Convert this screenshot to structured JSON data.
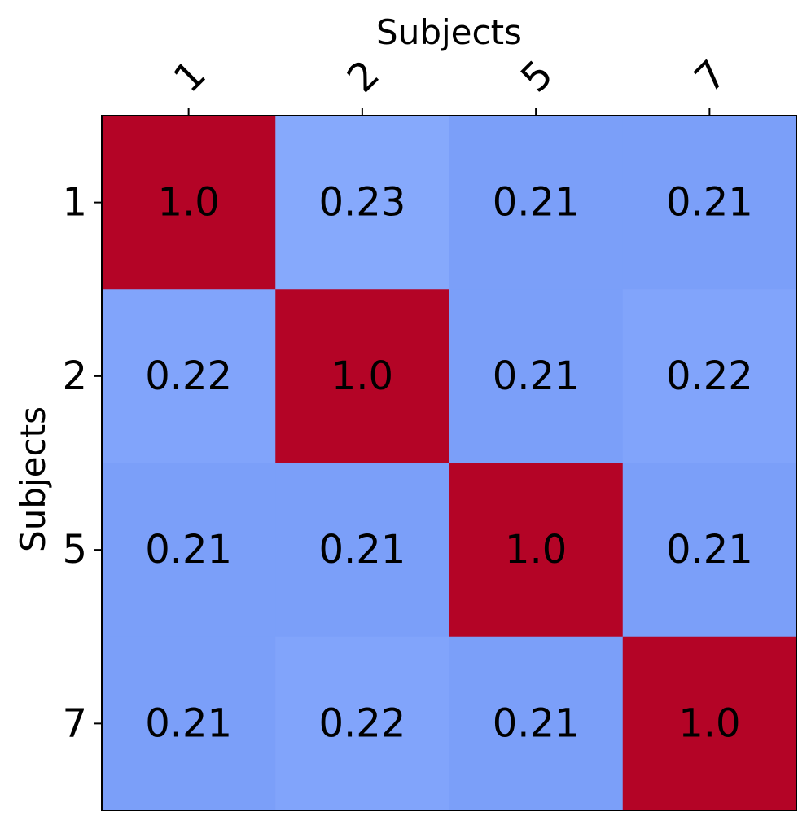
{
  "chart_data": {
    "type": "heatmap",
    "title": "",
    "xlabel": "Subjects",
    "ylabel": "Subjects",
    "x_categories": [
      "1",
      "2",
      "5",
      "7"
    ],
    "y_categories": [
      "1",
      "2",
      "5",
      "7"
    ],
    "values": [
      [
        1.0,
        0.23,
        0.21,
        0.21
      ],
      [
        0.22,
        1.0,
        0.21,
        0.22
      ],
      [
        0.21,
        0.21,
        1.0,
        0.21
      ],
      [
        0.21,
        0.22,
        0.21,
        1.0
      ]
    ],
    "value_labels": [
      [
        "1.0",
        "0.23",
        "0.21",
        "0.21"
      ],
      [
        "0.22",
        "1.0",
        "0.21",
        "0.22"
      ],
      [
        "0.21",
        "0.21",
        "1.0",
        "0.21"
      ],
      [
        "0.21",
        "0.22",
        "0.21",
        "1.0"
      ]
    ],
    "x_axis_position": "top",
    "colormap": "coolwarm",
    "colors": {
      "high": "#b40426",
      "low_min": "#7b9ff9",
      "low_max": "#86a9fc"
    },
    "grid": false,
    "legend": "none"
  }
}
